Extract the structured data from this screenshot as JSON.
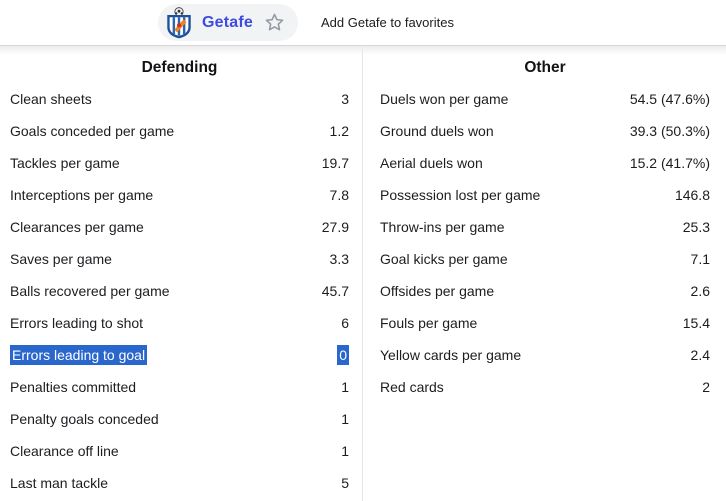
{
  "header": {
    "team_name": "Getafe",
    "favorites_label": "Add Getafe to favorites"
  },
  "icons": {
    "star": "star-outline-icon (☆, gray stroke #969ca6)",
    "crest": "getafe-club-crest (blue shield, white/blue stripes, orange sash, ball on top)"
  },
  "colors": {
    "brand_blue": "#3c4ce0",
    "selection_blue": "#2a67cd",
    "text": "#1c1d21",
    "divider": "#e5e5e7",
    "topbar_border": "#d6d6d8",
    "pill_background": "#f2f3f5",
    "star_gray": "#969ca6"
  },
  "sections": {
    "defending": {
      "title": "Defending",
      "rows": [
        {
          "label": "Clean sheets",
          "value": "3"
        },
        {
          "label": "Goals conceded per game",
          "value": "1.2"
        },
        {
          "label": "Tackles per game",
          "value": "19.7"
        },
        {
          "label": "Interceptions per game",
          "value": "7.8"
        },
        {
          "label": "Clearances per game",
          "value": "27.9"
        },
        {
          "label": "Saves per game",
          "value": "3.3"
        },
        {
          "label": "Balls recovered per game",
          "value": "45.7"
        },
        {
          "label": "Errors leading to shot",
          "value": "6"
        },
        {
          "label": "Errors leading to goal",
          "value": "0",
          "selected": true
        },
        {
          "label": "Penalties committed",
          "value": "1"
        },
        {
          "label": "Penalty goals conceded",
          "value": "1"
        },
        {
          "label": "Clearance off line",
          "value": "1"
        },
        {
          "label": "Last man tackle",
          "value": "5"
        }
      ]
    },
    "other": {
      "title": "Other",
      "rows": [
        {
          "label": "Duels won per game",
          "value": "54.5 (47.6%)"
        },
        {
          "label": "Ground duels won",
          "value": "39.3 (50.3%)"
        },
        {
          "label": "Aerial duels won",
          "value": "15.2 (41.7%)"
        },
        {
          "label": "Possession lost per game",
          "value": "146.8"
        },
        {
          "label": "Throw-ins per game",
          "value": "25.3"
        },
        {
          "label": "Goal kicks per game",
          "value": "7.1"
        },
        {
          "label": "Offsides per game",
          "value": "2.6"
        },
        {
          "label": "Fouls per game",
          "value": "15.4"
        },
        {
          "label": "Yellow cards per game",
          "value": "2.4"
        },
        {
          "label": "Red cards",
          "value": "2"
        }
      ]
    }
  }
}
